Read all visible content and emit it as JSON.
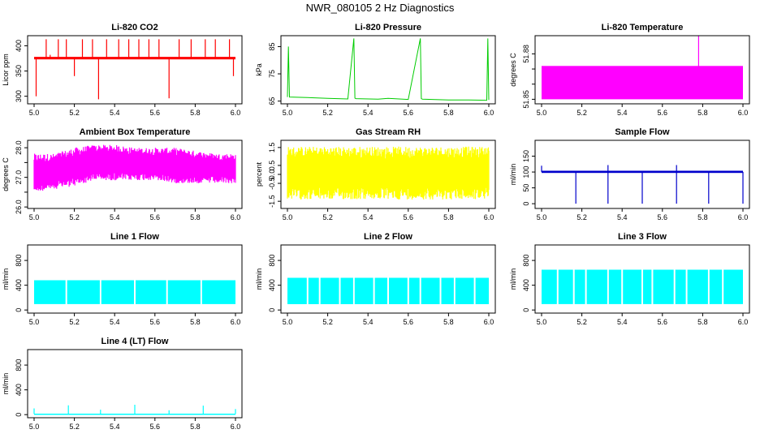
{
  "figure_title": "NWR_080105  2 Hz Diagnostics",
  "chart_data": [
    {
      "type": "line",
      "title": "Li-820 CO2",
      "xlabel": "",
      "ylabel": "Licor ppm",
      "color": "#ff0000",
      "xlim": [
        5.0,
        6.0
      ],
      "ylim": [
        285,
        420
      ],
      "xticks": [
        5.0,
        5.2,
        5.4,
        5.6,
        5.8,
        6.0
      ],
      "xtick_labels": [
        "5.0",
        "5.2",
        "5.4",
        "5.6",
        "5.8",
        "6.0"
      ],
      "yticks": [
        300,
        350,
        400
      ],
      "ytick_labels": [
        "300",
        "350",
        "400"
      ],
      "band": {
        "low": 373,
        "high": 378
      },
      "spikes": [
        {
          "x": 5.01,
          "y": 300
        },
        {
          "x": 5.06,
          "y": 413
        },
        {
          "x": 5.08,
          "y": 382
        },
        {
          "x": 5.12,
          "y": 413
        },
        {
          "x": 5.16,
          "y": 413
        },
        {
          "x": 5.2,
          "y": 340
        },
        {
          "x": 5.24,
          "y": 413
        },
        {
          "x": 5.29,
          "y": 413
        },
        {
          "x": 5.32,
          "y": 294
        },
        {
          "x": 5.36,
          "y": 413
        },
        {
          "x": 5.42,
          "y": 413
        },
        {
          "x": 5.47,
          "y": 413
        },
        {
          "x": 5.52,
          "y": 413
        },
        {
          "x": 5.57,
          "y": 413
        },
        {
          "x": 5.62,
          "y": 413
        },
        {
          "x": 5.67,
          "y": 296
        },
        {
          "x": 5.72,
          "y": 413
        },
        {
          "x": 5.78,
          "y": 413
        },
        {
          "x": 5.85,
          "y": 413
        },
        {
          "x": 5.9,
          "y": 413
        },
        {
          "x": 5.97,
          "y": 413
        },
        {
          "x": 5.99,
          "y": 340
        }
      ]
    },
    {
      "type": "line",
      "title": "Li-820 Pressure",
      "xlabel": "",
      "ylabel": "kPa",
      "color": "#00cc00",
      "xlim": [
        5.0,
        6.0
      ],
      "ylim": [
        64,
        89
      ],
      "xticks": [
        5.0,
        5.2,
        5.4,
        5.6,
        5.8,
        6.0
      ],
      "xtick_labels": [
        "5.0",
        "5.2",
        "5.4",
        "5.6",
        "5.8",
        "6.0"
      ],
      "yticks": [
        65,
        75,
        85
      ],
      "ytick_labels": [
        "65",
        "75",
        "85"
      ],
      "series": [
        {
          "name": "pressure",
          "x": [
            5.0,
            5.005,
            5.01,
            5.1,
            5.2,
            5.3,
            5.33,
            5.335,
            5.34,
            5.45,
            5.5,
            5.6,
            5.66,
            5.665,
            5.67,
            5.8,
            5.9,
            5.99,
            5.995,
            6.0
          ],
          "y": [
            66.5,
            85,
            66.5,
            66.3,
            66.0,
            65.8,
            88,
            66.1,
            65.9,
            65.7,
            66.0,
            65.6,
            88,
            65.9,
            65.7,
            65.4,
            65.4,
            65.3,
            88,
            65.4
          ]
        }
      ]
    },
    {
      "type": "area",
      "title": "Li-820 Temperature",
      "xlabel": "",
      "ylabel": "degrees C",
      "color": "#ff00ff",
      "xlim": [
        5.0,
        6.0
      ],
      "ylim": [
        51.847,
        51.892
      ],
      "xticks": [
        5.0,
        5.2,
        5.4,
        5.6,
        5.8,
        6.0
      ],
      "xtick_labels": [
        "5.0",
        "5.2",
        "5.4",
        "5.6",
        "5.8",
        "6.0"
      ],
      "yticks": [
        51.85,
        51.86,
        51.87,
        51.88
      ],
      "ytick_labels": [
        "51.85",
        "",
        "",
        "51.88"
      ],
      "band": {
        "low": 51.85,
        "high": 51.872
      },
      "spikes": [
        {
          "x": 5.78,
          "y": 51.892
        }
      ]
    },
    {
      "type": "area",
      "title": "Ambient Box Temperature",
      "xlabel": "",
      "ylabel": "degrees C",
      "color": "#ff00ff",
      "xlim": [
        5.0,
        6.0
      ],
      "ylim": [
        25.95,
        28.25
      ],
      "xticks": [
        5.0,
        5.2,
        5.4,
        5.6,
        5.8,
        6.0
      ],
      "xtick_labels": [
        "5.0",
        "5.2",
        "5.4",
        "5.6",
        "5.8",
        "6.0"
      ],
      "yticks": [
        26.0,
        26.5,
        27.0,
        27.5,
        28.0
      ],
      "ytick_labels": [
        "26.0",
        "",
        "27.0",
        "",
        "28.0"
      ],
      "envelope": {
        "x": [
          5.0,
          5.1,
          5.2,
          5.3,
          5.4,
          5.5,
          5.6,
          5.7,
          5.8,
          5.9,
          6.0
        ],
        "low": [
          26.5,
          26.6,
          26.7,
          26.9,
          26.9,
          26.9,
          26.9,
          26.8,
          26.8,
          26.8,
          26.8
        ],
        "high": [
          27.8,
          27.8,
          28.0,
          28.1,
          28.1,
          28.0,
          28.0,
          28.0,
          27.9,
          27.8,
          27.8
        ]
      }
    },
    {
      "type": "area",
      "title": "Gas Stream RH",
      "xlabel": "",
      "ylabel": "percent",
      "color": "#ffff00",
      "xlim": [
        5.0,
        6.0
      ],
      "ylim": [
        -1.9,
        1.9
      ],
      "xticks": [
        5.0,
        5.2,
        5.4,
        5.6,
        5.8,
        6.0
      ],
      "xtick_labels": [
        "5.0",
        "5.2",
        "5.4",
        "5.6",
        "5.8",
        "6.0"
      ],
      "yticks": [
        -1.5,
        -0.5,
        0.0,
        0.5,
        1.5
      ],
      "ytick_labels": [
        "-1.5",
        "-0.5",
        "0.0",
        "0.5",
        "1.5"
      ],
      "envelope": {
        "x": [
          5.0,
          6.0
        ],
        "low": [
          -1.4,
          -1.4
        ],
        "high": [
          1.55,
          1.55
        ]
      }
    },
    {
      "type": "line",
      "title": "Sample Flow",
      "xlabel": "",
      "ylabel": "ml/min",
      "color": "#0000cc",
      "xlim": [
        5.0,
        6.0
      ],
      "ylim": [
        -15,
        200
      ],
      "xticks": [
        5.0,
        5.2,
        5.4,
        5.6,
        5.8,
        6.0
      ],
      "xtick_labels": [
        "5.0",
        "5.2",
        "5.4",
        "5.6",
        "5.8",
        "6.0"
      ],
      "yticks": [
        0,
        50,
        100,
        150
      ],
      "ytick_labels": [
        "0",
        "50",
        "100",
        "150"
      ],
      "band": {
        "low": 97,
        "high": 104
      },
      "spikes": [
        {
          "x": 5.0,
          "y": 120
        },
        {
          "x": 5.17,
          "y": 0
        },
        {
          "x": 5.33,
          "y": 0
        },
        {
          "x": 5.33,
          "y": 122
        },
        {
          "x": 5.5,
          "y": 0
        },
        {
          "x": 5.67,
          "y": 0
        },
        {
          "x": 5.67,
          "y": 122
        },
        {
          "x": 5.83,
          "y": 0
        },
        {
          "x": 6.0,
          "y": 0
        }
      ]
    },
    {
      "type": "area",
      "title": "Line 1 Flow",
      "xlabel": "",
      "ylabel": "ml/min",
      "color": "#00ffff",
      "xlim": [
        5.0,
        6.0
      ],
      "ylim": [
        -50,
        1050
      ],
      "xticks": [
        5.0,
        5.2,
        5.4,
        5.6,
        5.8,
        6.0
      ],
      "xtick_labels": [
        "5.0",
        "5.2",
        "5.4",
        "5.6",
        "5.8",
        "6.0"
      ],
      "yticks": [
        0,
        400,
        800
      ],
      "ytick_labels": [
        "0",
        "400",
        "800"
      ],
      "band": {
        "low": 95,
        "high": 480
      },
      "gaps": [
        5.16,
        5.33,
        5.5,
        5.66,
        5.83
      ]
    },
    {
      "type": "area",
      "title": "Line 2 Flow",
      "xlabel": "",
      "ylabel": "ml/min",
      "color": "#00ffff",
      "xlim": [
        5.0,
        6.0
      ],
      "ylim": [
        -50,
        1050
      ],
      "xticks": [
        5.0,
        5.2,
        5.4,
        5.6,
        5.8,
        6.0
      ],
      "xtick_labels": [
        "5.0",
        "5.2",
        "5.4",
        "5.6",
        "5.8",
        "6.0"
      ],
      "yticks": [
        0,
        400,
        800
      ],
      "ytick_labels": [
        "0",
        "400",
        "800"
      ],
      "band": {
        "low": 95,
        "high": 520
      },
      "gaps": [
        5.1,
        5.16,
        5.26,
        5.33,
        5.43,
        5.5,
        5.6,
        5.66,
        5.76,
        5.83,
        5.93
      ]
    },
    {
      "type": "area",
      "title": "Line 3 Flow",
      "xlabel": "",
      "ylabel": "ml/min",
      "color": "#00ffff",
      "xlim": [
        5.0,
        6.0
      ],
      "ylim": [
        -50,
        1050
      ],
      "xticks": [
        5.0,
        5.2,
        5.4,
        5.6,
        5.8,
        6.0
      ],
      "xtick_labels": [
        "5.0",
        "5.2",
        "5.4",
        "5.6",
        "5.8",
        "6.0"
      ],
      "yticks": [
        0,
        400,
        800
      ],
      "ytick_labels": [
        "0",
        "400",
        "800"
      ],
      "band": {
        "low": 95,
        "high": 650
      },
      "gaps": [
        5.08,
        5.16,
        5.22,
        5.33,
        5.4,
        5.5,
        5.55,
        5.66,
        5.72,
        5.83,
        5.9
      ]
    },
    {
      "type": "line",
      "title": "Line 4 (LT) Flow",
      "xlabel": "",
      "ylabel": "ml/min",
      "color": "#00ffff",
      "xlim": [
        5.0,
        6.0
      ],
      "ylim": [
        -50,
        1050
      ],
      "xticks": [
        5.0,
        5.2,
        5.4,
        5.6,
        5.8,
        6.0
      ],
      "xtick_labels": [
        "5.0",
        "5.2",
        "5.4",
        "5.6",
        "5.8",
        "6.0"
      ],
      "yticks": [
        0,
        400,
        800
      ],
      "ytick_labels": [
        "0",
        "400",
        "800"
      ],
      "band": {
        "low": 5,
        "high": 15
      },
      "spikes": [
        {
          "x": 5.0,
          "y": 100
        },
        {
          "x": 5.17,
          "y": 150
        },
        {
          "x": 5.33,
          "y": 80
        },
        {
          "x": 5.5,
          "y": 160
        },
        {
          "x": 5.67,
          "y": 70
        },
        {
          "x": 5.84,
          "y": 145
        },
        {
          "x": 6.0,
          "y": 90
        }
      ]
    }
  ]
}
